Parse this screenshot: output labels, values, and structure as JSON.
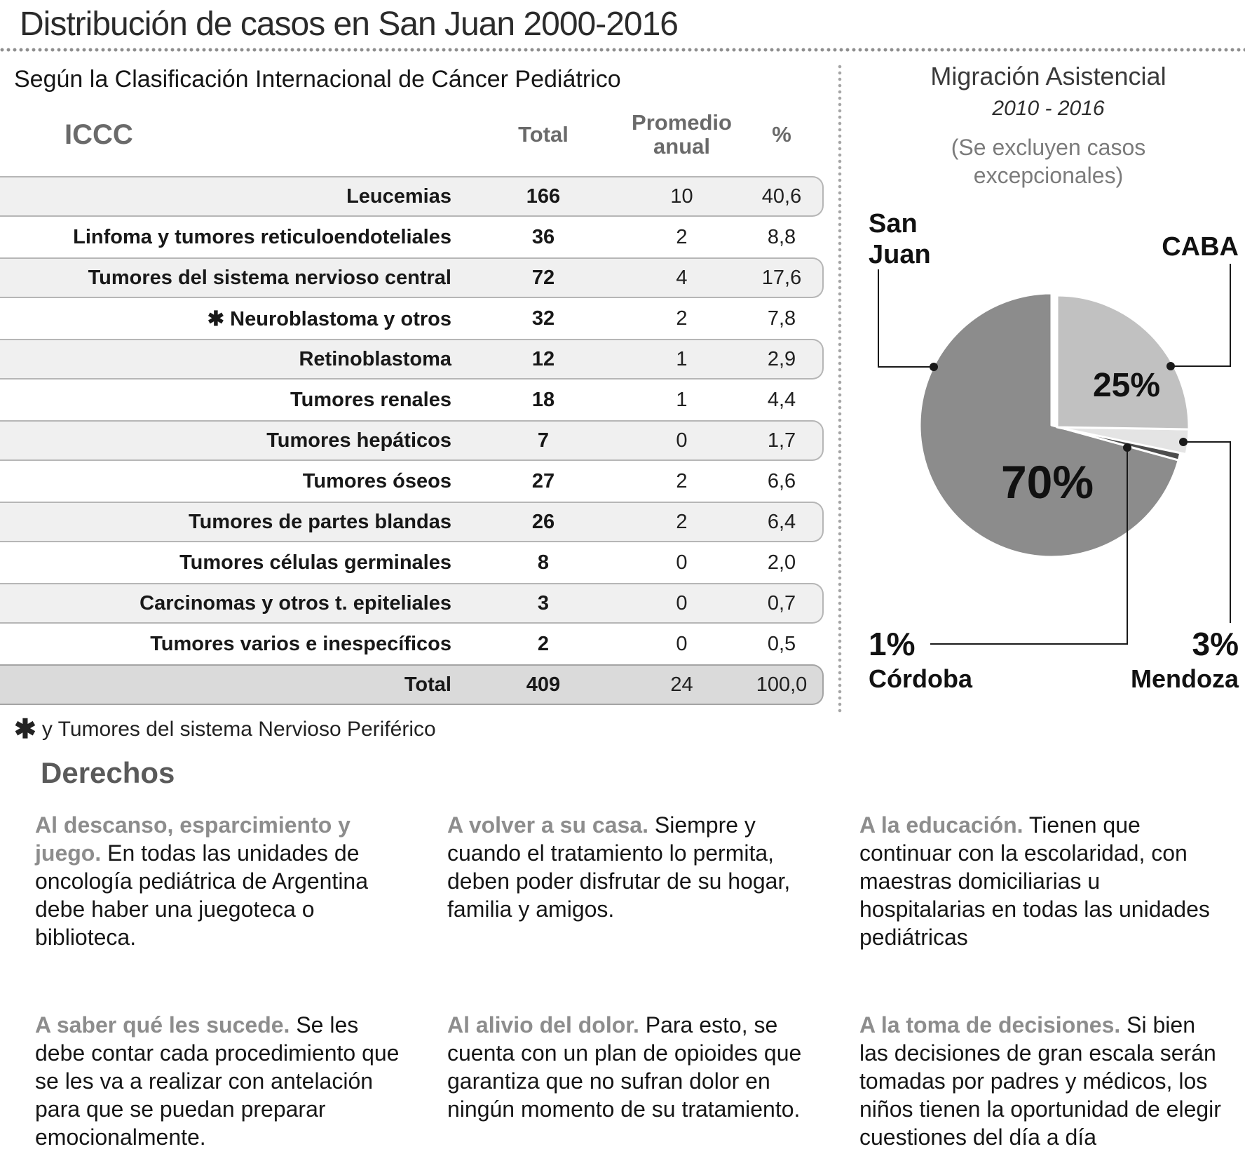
{
  "title": "Distribución de casos en San Juan 2000-2016",
  "table": {
    "subtitle": "Según la Clasificación Internacional de Cáncer Pediátrico",
    "columns": {
      "iccc": "ICCC",
      "total": "Total",
      "promedio": "Promedio anual",
      "pct": "%"
    },
    "rows": [
      {
        "label": "Leucemias",
        "total": "166",
        "promedio": "10",
        "pct": "40,6",
        "shaded": true
      },
      {
        "label": "Linfoma y tumores reticuloendoteliales",
        "total": "36",
        "promedio": "2",
        "pct": "8,8",
        "shaded": false
      },
      {
        "label": "Tumores del sistema nervioso central",
        "total": "72",
        "promedio": "4",
        "pct": "17,6",
        "shaded": true
      },
      {
        "label": "✱ Neuroblastoma y otros",
        "total": "32",
        "promedio": "2",
        "pct": "7,8",
        "shaded": false
      },
      {
        "label": "Retinoblastoma",
        "total": "12",
        "promedio": "1",
        "pct": "2,9",
        "shaded": true
      },
      {
        "label": "Tumores renales",
        "total": "18",
        "promedio": "1",
        "pct": "4,4",
        "shaded": false
      },
      {
        "label": "Tumores hepáticos",
        "total": "7",
        "promedio": "0",
        "pct": "1,7",
        "shaded": true
      },
      {
        "label": "Tumores óseos",
        "total": "27",
        "promedio": "2",
        "pct": "6,6",
        "shaded": false
      },
      {
        "label": "Tumores de partes blandas",
        "total": "26",
        "promedio": "2",
        "pct": "6,4",
        "shaded": true
      },
      {
        "label": "Tumores células germinales",
        "total": "8",
        "promedio": "0",
        "pct": "2,0",
        "shaded": false
      },
      {
        "label": "Carcinomas y otros t. epiteliales",
        "total": "3",
        "promedio": "0",
        "pct": "0,7",
        "shaded": true
      },
      {
        "label": "Tumores varios e inespecíficos",
        "total": "2",
        "promedio": "0",
        "pct": "0,5",
        "shaded": false
      }
    ],
    "total_row": {
      "label": "Total",
      "total": "409",
      "promedio": "24",
      "pct": "100,0"
    },
    "footnote_marker": "✱",
    "footnote_text": "y Tumores del sistema Nervioso Periférico"
  },
  "chart_data": {
    "type": "pie",
    "title": "Migración Asistencial",
    "subtitle": "2010 - 2016",
    "note": "(Se excluyen casos excepcionales)",
    "legend_position": "callouts",
    "slices": [
      {
        "label": "San Juan",
        "value": 70,
        "display": "70%",
        "color": "#8c8c8c"
      },
      {
        "label": "CABA",
        "value": 25,
        "display": "25%",
        "color": "#c1c1c1"
      },
      {
        "label": "Mendoza",
        "value": 3,
        "display": "3%",
        "color": "#e4e4e4"
      },
      {
        "label": "Córdoba",
        "value": 1,
        "display": "1%",
        "color": "#4d4d4d"
      }
    ]
  },
  "pie_panel": {
    "san_juan_lines": [
      "San",
      "Juan"
    ],
    "caba_label": "CABA",
    "cordoba_pct": "1%",
    "cordoba_name": "Córdoba",
    "mendoza_pct": "3%",
    "mendoza_name": "Mendoza"
  },
  "derechos": {
    "heading": "Derechos",
    "blocks": [
      {
        "lead": "Al descanso, esparcimiento y juego.",
        "body": "En todas las unidades de oncología pediátrica de Argentina debe haber una juegoteca o biblioteca."
      },
      {
        "lead": "A volver a su casa.",
        "body": "Siempre y cuando el tratamiento lo permita, deben poder disfrutar de su hogar, familia y amigos."
      },
      {
        "lead": "A la educación.",
        "body": "Tienen que continuar con la escolaridad, con maestras domiciliarias u hospitalarias en todas las unidades pediátricas"
      },
      {
        "lead": "A saber qué les sucede.",
        "body": "Se les debe contar cada procedimiento que se les va a realizar con antelación para que se puedan preparar emocionalmente."
      },
      {
        "lead": "Al alivio del dolor.",
        "body": "Para esto, se cuenta con un plan de opioides que garantiza que no sufran dolor en ningún momento de su tratamiento."
      },
      {
        "lead": "A la toma de decisiones.",
        "body": "Si bien las decisiones de gran escala serán tomadas por padres y médicos, los niños tienen la oportunidad de elegir cuestiones del día a día"
      }
    ]
  }
}
